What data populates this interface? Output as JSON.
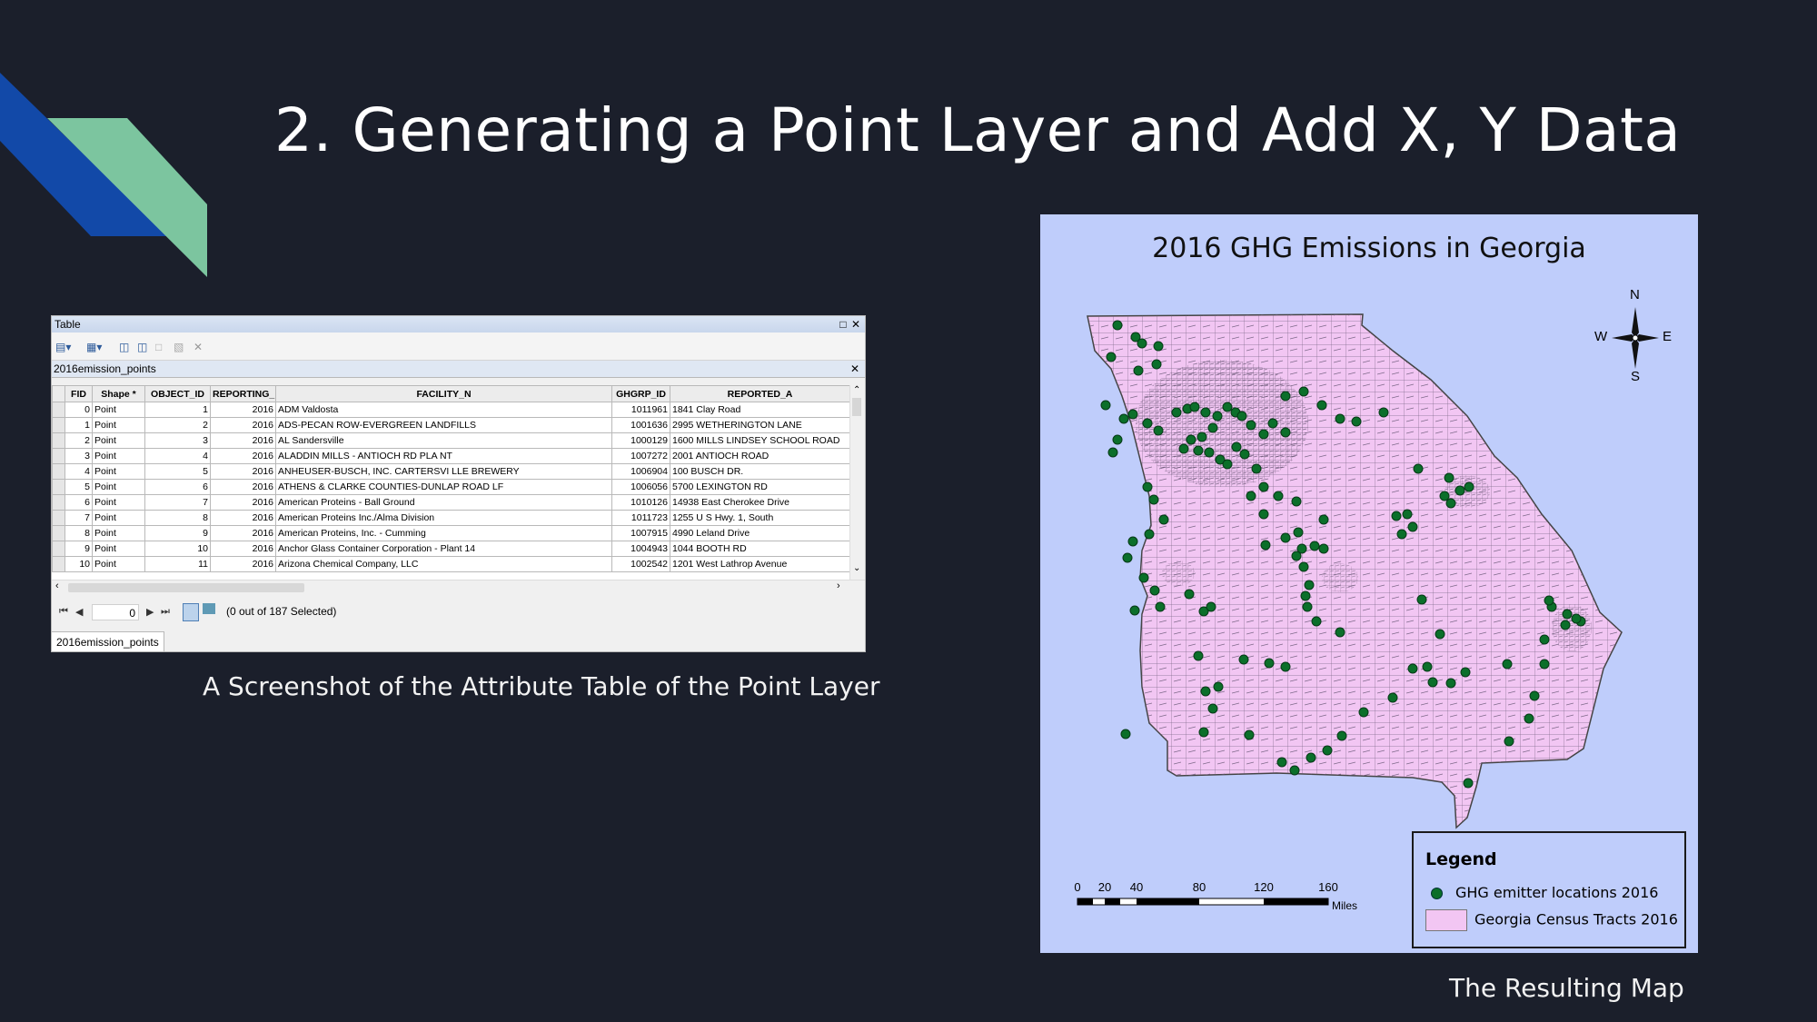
{
  "slide": {
    "title": "2. Generating a Point Layer and Add X, Y Data",
    "caption_left": "A Screenshot of the Attribute Table of the Point Layer",
    "caption_right": "The Resulting Map",
    "colors": {
      "background": "#1b1f2b",
      "accent_blue": "#1249a8",
      "accent_green": "#7cc59f"
    }
  },
  "table_window": {
    "title": "Table",
    "layer_tab": "2016emission_points",
    "columns": [
      "FID",
      "Shape *",
      "OBJECT_ID",
      "REPORTING_",
      "FACILITY_N",
      "GHGRP_ID",
      "REPORTED_A"
    ],
    "rows": [
      [
        "0",
        "Point",
        "1",
        "2016",
        "ADM Valdosta",
        "1011961",
        "1841 Clay Road"
      ],
      [
        "1",
        "Point",
        "2",
        "2016",
        "ADS-PECAN ROW-EVERGREEN LANDFILLS",
        "1001636",
        "2995 WETHERINGTON LANE"
      ],
      [
        "2",
        "Point",
        "3",
        "2016",
        "AL Sandersville",
        "1000129",
        "1600 MILLS LINDSEY SCHOOL ROAD"
      ],
      [
        "3",
        "Point",
        "4",
        "2016",
        "ALADDIN MILLS - ANTIOCH RD PLA NT",
        "1007272",
        "2001 ANTIOCH ROAD"
      ],
      [
        "4",
        "Point",
        "5",
        "2016",
        "ANHEUSER-BUSCH, INC. CARTERSVI LLE BREWERY",
        "1006904",
        "100 BUSCH DR."
      ],
      [
        "5",
        "Point",
        "6",
        "2016",
        "ATHENS & CLARKE COUNTIES-DUNLAP ROAD LF",
        "1006056",
        "5700 LEXINGTON RD"
      ],
      [
        "6",
        "Point",
        "7",
        "2016",
        "American Proteins - Ball Ground",
        "1010126",
        "14938 East Cherokee Drive"
      ],
      [
        "7",
        "Point",
        "8",
        "2016",
        "American Proteins Inc./Alma Division",
        "1011723",
        "1255 U S Hwy. 1, South"
      ],
      [
        "8",
        "Point",
        "9",
        "2016",
        "American Proteins, Inc. - Cumming",
        "1007915",
        "4990 Leland Drive"
      ],
      [
        "9",
        "Point",
        "10",
        "2016",
        "Anchor Glass Container Corporation - Plant 14",
        "1004943",
        "1044 BOOTH RD"
      ],
      [
        "10",
        "Point",
        "11",
        "2016",
        "Arizona Chemical Company, LLC",
        "1002542",
        "1201 West Lathrop Avenue"
      ]
    ],
    "record_position": "0",
    "selection_status": "(0 out of 187 Selected)",
    "bottom_tab": "2016emission_points",
    "icons": [
      "table-options-icon",
      "related-tables-icon",
      "select-by-attributes-icon",
      "switch-selection-icon",
      "clear-selection-icon",
      "copy-selected-icon",
      "delete-selected-icon"
    ]
  },
  "map": {
    "title": "2016 GHG Emissions in Georgia",
    "compass": {
      "n": "N",
      "s": "S",
      "e": "E",
      "w": "W"
    },
    "legend": {
      "title": "Legend",
      "items": [
        "GHG emitter locations 2016",
        "Georgia Census Tracts 2016"
      ]
    },
    "scale_labels": [
      "0",
      "20",
      "40",
      "80",
      "120",
      "160"
    ],
    "scale_unit": "Miles",
    "colors": {
      "background": "#bfcdfb",
      "tracts": "#f2c6f3",
      "points": "#0b6f2a"
    }
  }
}
